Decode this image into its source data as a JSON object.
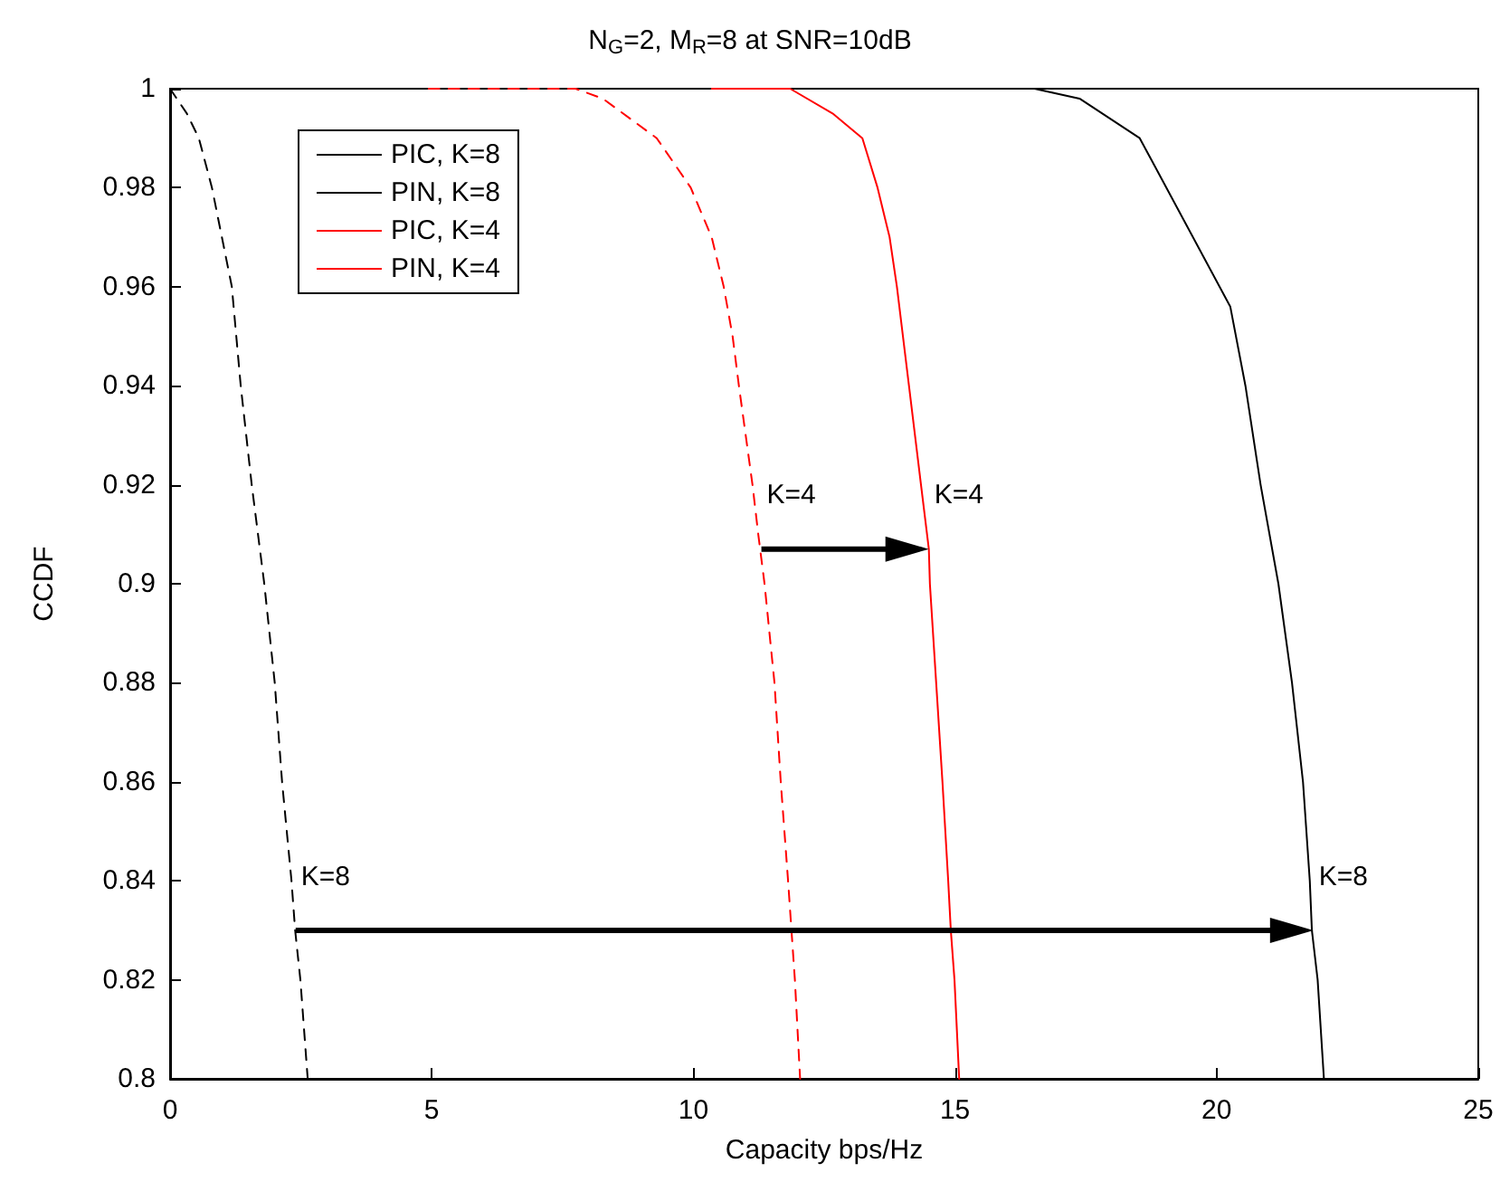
{
  "chart_data": {
    "type": "line",
    "title": "N$_{G}$=2, M$_{R}$=8 at SNR=10dB",
    "xlabel": "Capacity bps/Hz",
    "ylabel": "CCDF",
    "xlim": [
      0,
      25
    ],
    "xticks": [
      0,
      5,
      10,
      15,
      20,
      25
    ],
    "ylim": [
      0.8,
      1
    ],
    "yticks": [
      0.8,
      0.82,
      0.84,
      0.86,
      0.88,
      0.9,
      0.92,
      0.94,
      0.96,
      0.98,
      1
    ],
    "grid": false,
    "legend": "top left",
    "marker": "none",
    "series": [
      {
        "name": "PIC, K=8",
        "color": "#000000",
        "line_style": "solid",
        "x": [
          16.52,
          17.38,
          18.53,
          20.26,
          20.55,
          20.84,
          21.18,
          21.44,
          21.65,
          21.78,
          21.82,
          21.93,
          22.05
        ],
        "values": [
          1,
          0.998,
          0.99,
          0.956,
          0.94,
          0.92,
          0.9,
          0.88,
          0.86,
          0.84,
          0.83,
          0.82,
          0.8
        ]
      },
      {
        "name": "PIN, K=8",
        "color": "#000000",
        "line_style": "dashed",
        "x": [
          0,
          0.32,
          0.55,
          0.8,
          1.18,
          1.35,
          1.56,
          1.8,
          2.0,
          2.14,
          2.32,
          2.39,
          2.49,
          2.63
        ],
        "values": [
          1,
          0.995,
          0.99,
          0.98,
          0.96,
          0.94,
          0.92,
          0.9,
          0.88,
          0.86,
          0.84,
          0.83,
          0.82,
          0.8
        ]
      },
      {
        "name": "PIC, K=4",
        "color": "#ff0000",
        "line_style": "solid",
        "x": [
          10.35,
          11.85,
          12.66,
          13.23,
          13.52,
          13.75,
          13.89,
          14.12,
          14.35,
          14.5,
          14.52,
          14.64,
          14.76,
          14.87,
          14.92,
          14.99,
          15.08
        ],
        "values": [
          1,
          1,
          0.995,
          0.99,
          0.98,
          0.97,
          0.96,
          0.94,
          0.92,
          0.907,
          0.9,
          0.88,
          0.86,
          0.84,
          0.83,
          0.82,
          0.8
        ]
      },
      {
        "name": "PIN, K=4",
        "color": "#ff0000",
        "line_style": "dashed",
        "x": [
          4.94,
          7.75,
          8.27,
          9.3,
          9.95,
          10.35,
          10.58,
          10.75,
          10.87,
          11.0,
          11.13,
          11.24,
          11.36,
          11.55,
          11.67,
          11.81,
          11.94,
          12.04
        ],
        "values": [
          1,
          1,
          0.998,
          0.99,
          0.98,
          0.97,
          0.96,
          0.95,
          0.94,
          0.93,
          0.92,
          0.91,
          0.9,
          0.88,
          0.86,
          0.84,
          0.82,
          0.8
        ]
      }
    ],
    "annotations": [
      {
        "text": "K=4",
        "x": 11.3,
        "y": 0.907
      },
      {
        "text": "K=4",
        "x": 14.5,
        "y": 0.907
      },
      {
        "text": "K=8",
        "x": 2.4,
        "y": 0.83
      },
      {
        "text": "K=8",
        "x": 21.85,
        "y": 0.83
      }
    ]
  }
}
